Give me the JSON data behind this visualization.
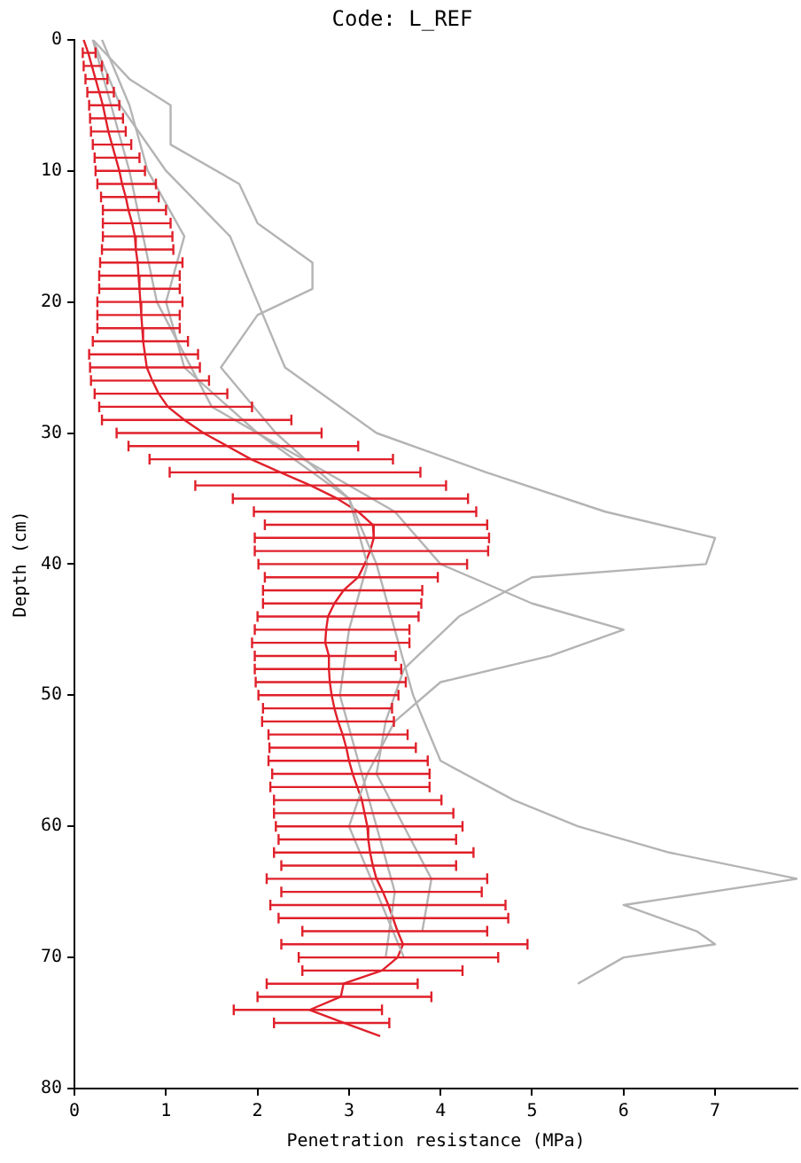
{
  "chart_data": {
    "type": "line",
    "title": "Code: L_REF",
    "xlabel": "Penetration resistance (MPa)",
    "ylabel": "Depth (cm)",
    "xlim": [
      0,
      7.9
    ],
    "xticks": [
      0,
      1,
      2,
      3,
      4,
      5,
      6,
      7
    ],
    "ylim": [
      80,
      0
    ],
    "yticks": [
      0,
      10,
      20,
      30,
      40,
      50,
      60,
      70,
      80
    ],
    "grid": false,
    "legend": false,
    "marker": "none",
    "line_style": "solid",
    "series": [
      {
        "color": "#b4b4b4",
        "x": [
          0.2,
          0.5,
          1.0,
          1.7,
          2.0,
          2.3,
          3.3,
          4.5,
          5.8,
          7.0,
          6.9,
          5.0,
          4.2,
          3.6,
          3.4,
          3.3,
          3.6,
          3.9,
          3.8
        ],
        "values": [
          0,
          5,
          10,
          15,
          20,
          25,
          30,
          33,
          36,
          38,
          40,
          41,
          44,
          48,
          52,
          56,
          60,
          64,
          68
        ]
      },
      {
        "color": "#b4b4b4",
        "x": [
          0.3,
          0.6,
          0.8,
          1.2,
          1.0,
          1.2,
          2.0,
          3.0,
          3.3,
          3.5,
          3.7,
          4.0,
          4.8,
          5.5,
          6.5,
          7.9,
          6.0,
          6.8,
          7.0,
          6.0,
          5.5
        ],
        "values": [
          0,
          5,
          10,
          15,
          20,
          25,
          30,
          35,
          40,
          45,
          50,
          55,
          58,
          60,
          62,
          64,
          66,
          68,
          69,
          70,
          72
        ]
      },
      {
        "color": "#b4b4b4",
        "x": [
          0.2,
          0.6,
          0.9,
          1.5,
          2.5,
          3.5,
          4.0,
          5.0,
          6.0,
          5.2,
          4.0,
          3.5,
          3.2,
          3.0,
          3.3,
          3.6
        ],
        "values": [
          0,
          10,
          20,
          28,
          32,
          36,
          40,
          43,
          45,
          47,
          49,
          52,
          56,
          60,
          65,
          70
        ]
      },
      {
        "color": "#b4b4b4",
        "x": [
          0.2,
          0.6,
          1.05,
          1.05,
          1.8,
          2.0,
          2.6,
          2.6,
          2.0,
          1.6,
          2.2,
          3.0,
          3.2,
          3.0,
          2.9,
          3.1,
          3.3,
          3.5,
          3.4
        ],
        "values": [
          0,
          3,
          5,
          8,
          11,
          14,
          17,
          19,
          21,
          25,
          30,
          35,
          40,
          45,
          50,
          55,
          60,
          65,
          70
        ]
      },
      {
        "color": "#e0202a",
        "x": [
          0.1,
          0.15,
          0.19,
          0.23,
          0.27,
          0.31,
          0.34,
          0.37,
          0.41,
          0.45,
          0.49,
          0.52,
          0.56,
          0.59,
          0.63,
          0.66,
          0.67,
          0.69,
          0.7,
          0.71,
          0.72,
          0.73,
          0.74,
          0.75,
          0.77,
          0.79,
          0.85,
          0.92,
          1.02,
          1.2,
          1.41,
          1.67,
          1.93,
          2.25,
          2.58,
          2.87,
          3.1,
          3.26,
          3.27,
          3.23,
          3.17,
          3.1,
          2.94,
          2.84,
          2.77,
          2.75,
          2.74,
          2.78,
          2.78,
          2.79,
          2.81,
          2.84,
          2.88,
          2.93,
          2.97,
          3.0,
          3.04,
          3.09,
          3.14,
          3.17,
          3.2,
          3.21,
          3.23,
          3.26,
          3.3,
          3.37,
          3.43,
          3.48,
          3.53,
          3.59,
          3.53,
          3.36,
          2.94,
          2.91,
          2.57,
          2.95,
          3.34
        ],
        "values": [
          0,
          1,
          2,
          3,
          4,
          5,
          6,
          7,
          8,
          9,
          10,
          11,
          12,
          13,
          14,
          15,
          16,
          17,
          18,
          19,
          20,
          21,
          22,
          23,
          24,
          25,
          26,
          27,
          28,
          29,
          30,
          31,
          32,
          33,
          34,
          35,
          36,
          37,
          38,
          39,
          40,
          41,
          42,
          43,
          44,
          45,
          46,
          47,
          48,
          49,
          50,
          51,
          52,
          53,
          54,
          55,
          56,
          57,
          58,
          59,
          60,
          61,
          62,
          63,
          64,
          65,
          66,
          67,
          68,
          69,
          70,
          71,
          72,
          73,
          74,
          75,
          76
        ],
        "xerrors": [
          null,
          [
            0.09,
            0.23
          ],
          [
            0.1,
            0.3
          ],
          [
            0.12,
            0.36
          ],
          [
            0.14,
            0.43
          ],
          [
            0.16,
            0.49
          ],
          [
            0.17,
            0.53
          ],
          [
            0.18,
            0.56
          ],
          [
            0.2,
            0.62
          ],
          [
            0.22,
            0.71
          ],
          [
            0.23,
            0.77
          ],
          [
            0.25,
            0.89
          ],
          [
            0.29,
            0.92
          ],
          [
            0.31,
            1.0
          ],
          [
            0.31,
            1.05
          ],
          [
            0.31,
            1.07
          ],
          [
            0.3,
            1.08
          ],
          [
            0.28,
            1.18
          ],
          [
            0.27,
            1.15
          ],
          [
            0.27,
            1.15
          ],
          [
            0.25,
            1.18
          ],
          [
            0.25,
            1.15
          ],
          [
            0.25,
            1.15
          ],
          [
            0.2,
            1.24
          ],
          [
            0.16,
            1.35
          ],
          [
            0.17,
            1.37
          ],
          [
            0.18,
            1.47
          ],
          [
            0.22,
            1.67
          ],
          [
            0.27,
            1.94
          ],
          [
            0.3,
            2.37
          ],
          [
            0.46,
            2.7
          ],
          [
            0.59,
            3.1
          ],
          [
            0.82,
            3.48
          ],
          [
            1.04,
            3.78
          ],
          [
            1.32,
            4.06
          ],
          [
            1.73,
            4.3
          ],
          [
            1.96,
            4.39
          ],
          [
            2.08,
            4.51
          ],
          [
            1.97,
            4.53
          ],
          [
            1.97,
            4.52
          ],
          [
            2.01,
            4.29
          ],
          [
            2.08,
            3.97
          ],
          [
            2.06,
            3.8
          ],
          [
            2.06,
            3.79
          ],
          [
            2.0,
            3.76
          ],
          [
            1.97,
            3.66
          ],
          [
            1.94,
            3.66
          ],
          [
            1.97,
            3.51
          ],
          [
            1.97,
            3.57
          ],
          [
            1.98,
            3.62
          ],
          [
            2.01,
            3.54
          ],
          [
            2.06,
            3.47
          ],
          [
            2.05,
            3.49
          ],
          [
            2.12,
            3.64
          ],
          [
            2.13,
            3.73
          ],
          [
            2.12,
            3.86
          ],
          [
            2.16,
            3.88
          ],
          [
            2.14,
            3.88
          ],
          [
            2.18,
            4.01
          ],
          [
            2.18,
            4.14
          ],
          [
            2.2,
            4.24
          ],
          [
            2.23,
            4.17
          ],
          [
            2.18,
            4.36
          ],
          [
            2.26,
            4.17
          ],
          [
            2.1,
            4.51
          ],
          [
            2.26,
            4.45
          ],
          [
            2.14,
            4.71
          ],
          [
            2.23,
            4.74
          ],
          [
            2.49,
            4.51
          ],
          [
            2.26,
            4.95
          ],
          [
            2.45,
            4.63
          ],
          [
            2.49,
            4.24
          ],
          [
            2.1,
            3.75
          ],
          [
            2.0,
            3.9
          ],
          [
            1.74,
            3.36
          ],
          [
            2.18,
            3.44
          ],
          null
        ]
      }
    ]
  }
}
